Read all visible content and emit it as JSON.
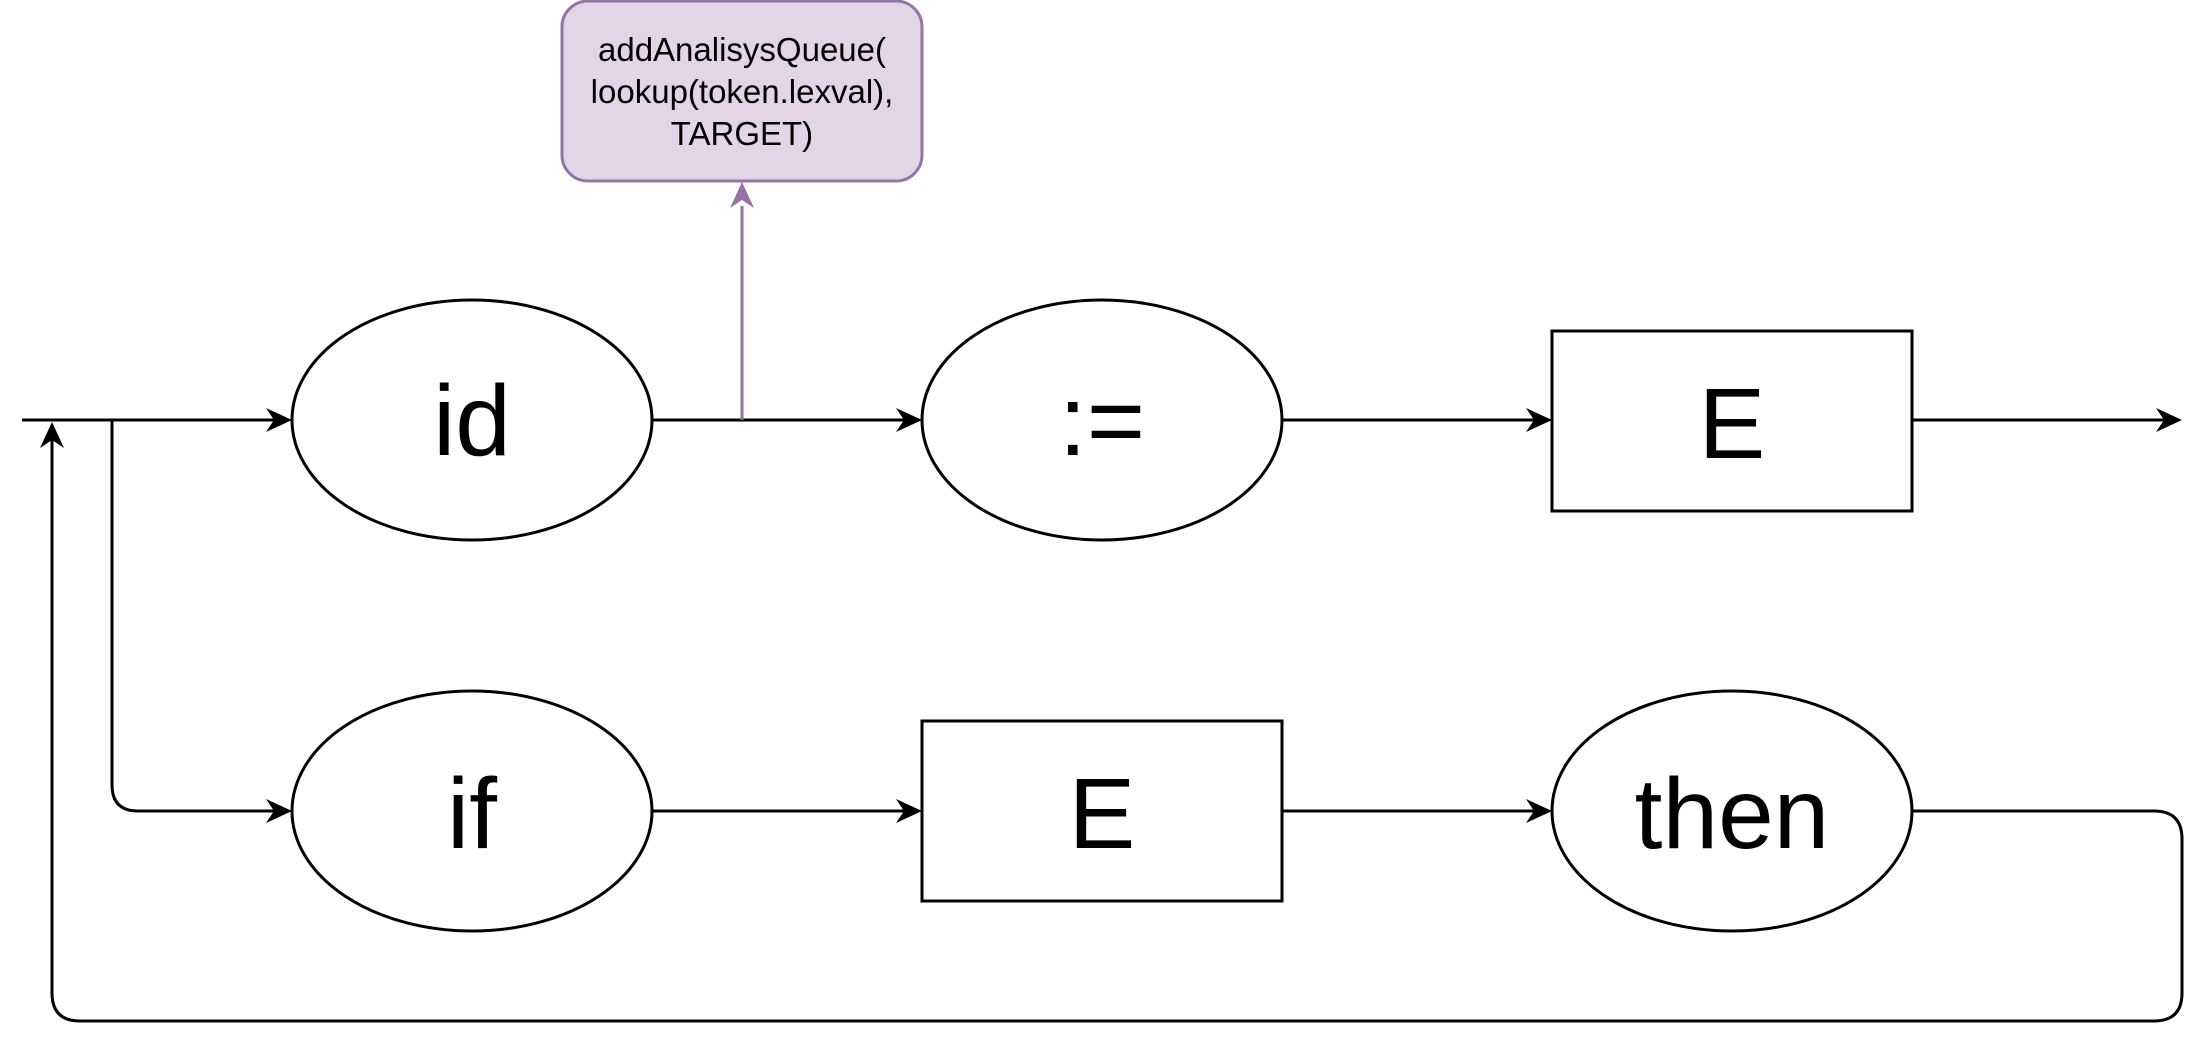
{
  "colors": {
    "line": "#000000",
    "action_fill": "#e1d5e7",
    "action_stroke": "#9673a6",
    "background": "#ffffff"
  },
  "nodes": {
    "id": "id",
    "assign": ":=",
    "expr_top": "E",
    "if": "if",
    "expr_bottom": "E",
    "then": "then"
  },
  "action": {
    "line1": "addAnalisysQueue(",
    "line2": "lookup(token.lexval),",
    "line3": "TARGET)"
  }
}
